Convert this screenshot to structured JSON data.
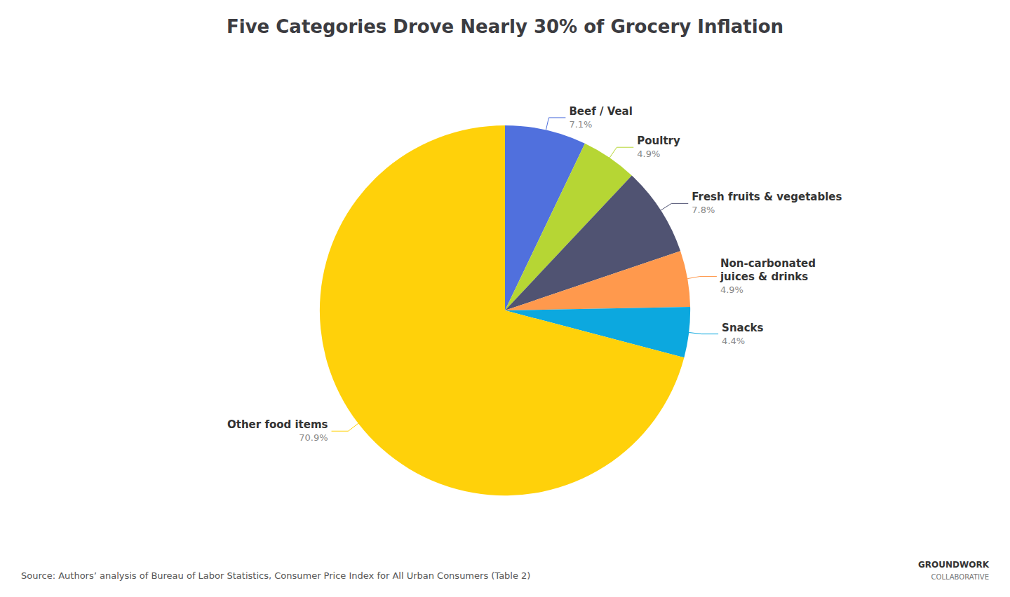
{
  "chart_data": {
    "type": "pie",
    "title": "Five Categories Drove Nearly 30% of Grocery Inflation",
    "categories": [
      "Beef / Veal",
      "Poultry",
      "Fresh fruits & vegetables",
      "Non-carbonated\njuices & drinks",
      "Snacks",
      "Other food items"
    ],
    "values": [
      7.1,
      4.9,
      7.8,
      4.9,
      4.4,
      70.9
    ],
    "value_labels": [
      "7.1%",
      "4.9%",
      "7.8%",
      "4.9%",
      "4.4%",
      "70.9%"
    ],
    "data_labels": true,
    "annotations": [
      "Source: Authors’ analysis of Bureau of Labor Statistics, Consumer Price Index for All Urban Consumers (Table 2)",
      "GROUNDWORK",
      "COLLABORATIVE"
    ]
  }
}
